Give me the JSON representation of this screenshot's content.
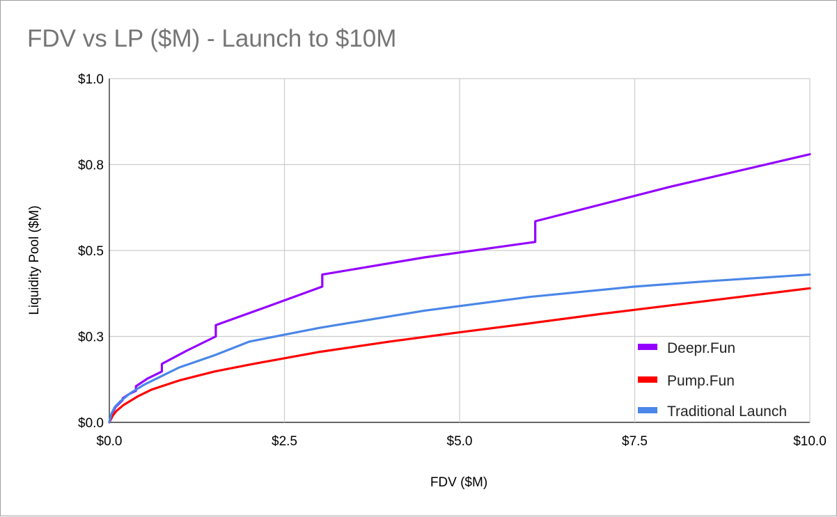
{
  "chart_data": {
    "type": "line",
    "title": "FDV vs LP ($M)  - Launch to $10M",
    "xlabel": "FDV ($M)",
    "ylabel": "Liquidity Pool ($M)",
    "xlim": [
      0,
      10
    ],
    "ylim": [
      0,
      1
    ],
    "x_ticks": [
      0,
      2.5,
      5,
      7.5,
      10
    ],
    "x_tick_labels": [
      "$0.0",
      "$2.5",
      "$5.0",
      "$7.5",
      "$10.0"
    ],
    "y_ticks": [
      0,
      0.25,
      0.5,
      0.75,
      1.0
    ],
    "y_tick_labels": [
      "$0.0",
      "$0.3",
      "$0.5",
      "$0.8",
      "$1.0"
    ],
    "grid": true,
    "legend_position": "bottom-right",
    "series": [
      {
        "name": "Deepr.Fun",
        "color": "#9400ff",
        "points": [
          [
            0,
            0
          ],
          [
            0.02,
            0.015
          ],
          [
            0.05,
            0.03
          ],
          [
            0.09,
            0.045
          ],
          [
            0.14,
            0.055
          ],
          [
            0.19,
            0.065
          ],
          [
            0.19,
            0.07
          ],
          [
            0.28,
            0.082
          ],
          [
            0.38,
            0.092
          ],
          [
            0.38,
            0.105
          ],
          [
            0.55,
            0.128
          ],
          [
            0.75,
            0.148
          ],
          [
            0.75,
            0.17
          ],
          [
            1.1,
            0.208
          ],
          [
            1.52,
            0.25
          ],
          [
            1.52,
            0.283
          ],
          [
            2.3,
            0.34
          ],
          [
            3.04,
            0.395
          ],
          [
            3.04,
            0.43
          ],
          [
            4.5,
            0.48
          ],
          [
            6.08,
            0.525
          ],
          [
            6.08,
            0.585
          ],
          [
            8.0,
            0.685
          ],
          [
            10.0,
            0.78
          ]
        ]
      },
      {
        "name": "Pump.Fun",
        "color": "#ff0000",
        "points": [
          [
            0,
            0
          ],
          [
            0.05,
            0.02
          ],
          [
            0.1,
            0.033
          ],
          [
            0.2,
            0.05
          ],
          [
            0.4,
            0.075
          ],
          [
            0.6,
            0.095
          ],
          [
            1.0,
            0.122
          ],
          [
            1.5,
            0.148
          ],
          [
            2.0,
            0.168
          ],
          [
            3.0,
            0.205
          ],
          [
            4.0,
            0.235
          ],
          [
            5.0,
            0.262
          ],
          [
            6.0,
            0.288
          ],
          [
            7.0,
            0.315
          ],
          [
            8.0,
            0.34
          ],
          [
            9.0,
            0.365
          ],
          [
            10.0,
            0.39
          ]
        ]
      },
      {
        "name": "Traditional Launch",
        "color": "#4a86e8",
        "points": [
          [
            0,
            0
          ],
          [
            0.03,
            0.025
          ],
          [
            0.08,
            0.045
          ],
          [
            0.15,
            0.06
          ],
          [
            0.3,
            0.085
          ],
          [
            0.5,
            0.11
          ],
          [
            0.75,
            0.135
          ],
          [
            1.0,
            0.16
          ],
          [
            1.5,
            0.195
          ],
          [
            2.0,
            0.235
          ],
          [
            3.0,
            0.275
          ],
          [
            4.5,
            0.325
          ],
          [
            6.0,
            0.365
          ],
          [
            7.5,
            0.395
          ],
          [
            8.5,
            0.41
          ],
          [
            10.0,
            0.43
          ]
        ]
      }
    ]
  }
}
